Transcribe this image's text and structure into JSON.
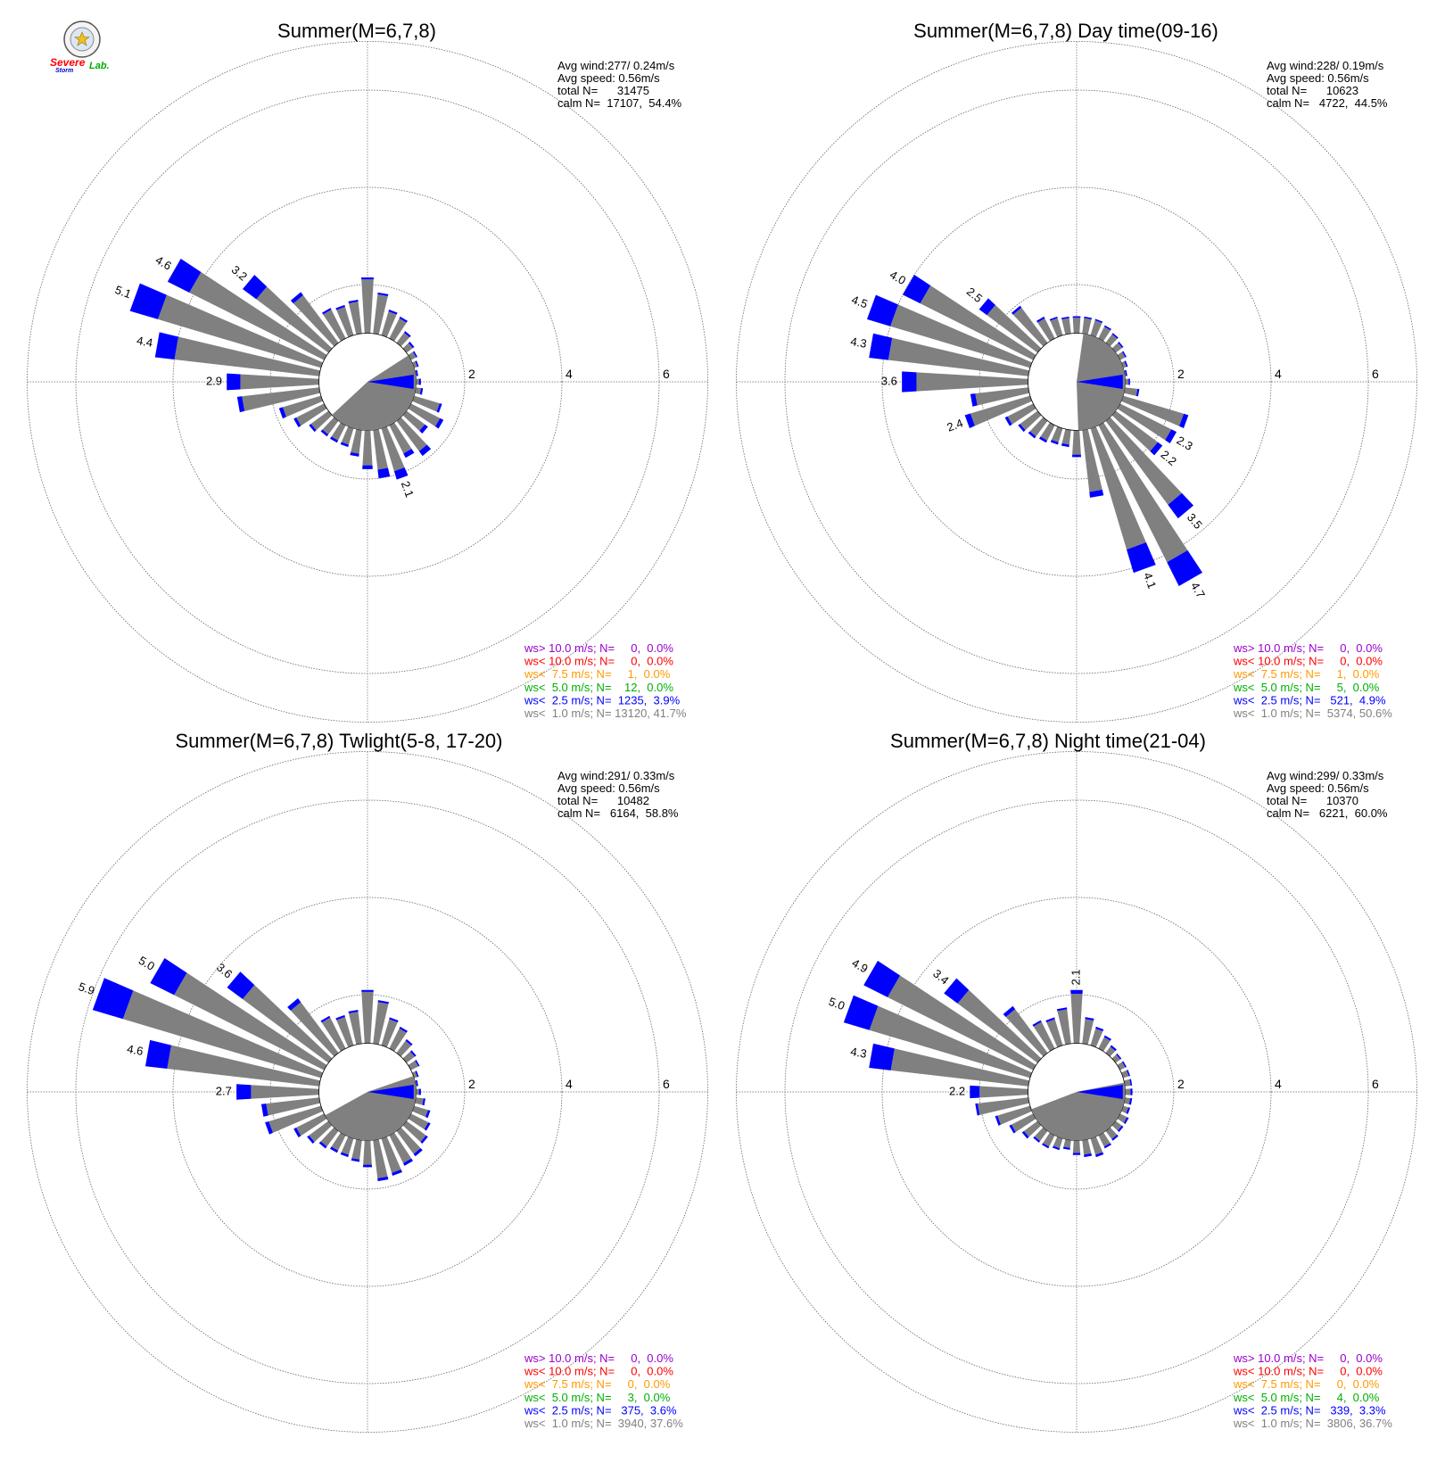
{
  "logo": {
    "text_severe": "Severe",
    "text_storm": "Storm",
    "text_lab": "Lab."
  },
  "colors": {
    "bar": "#808080",
    "blue": "#0000ff",
    "green": "#00b000",
    "orange": "#ff9900",
    "red": "#ff0000",
    "purple": "#9900cc",
    "gray_text": "#808080",
    "grid": "#666666"
  },
  "chart_data": [
    {
      "type": "polar-bar",
      "title": "Summer(M=6,7,8)",
      "stats": {
        "avg_wind": "Avg wind:277/ 0.24m/s",
        "avg_speed": "Avg speed: 0.56m/s",
        "total": "total N=      31475",
        "calm": "calm N=  17107,  54.4%"
      },
      "radial_axis": {
        "ticks": [
          2,
          4,
          6
        ],
        "max": 7,
        "calm_radius": 1.0
      },
      "legend": [
        {
          "text": "ws> 10.0 m/s; N=     0,  0.0%",
          "color": "#9900cc"
        },
        {
          "text": "ws< 10.0 m/s; N=     0,  0.0%",
          "color": "#ff0000"
        },
        {
          "text": "ws<  7.5 m/s; N=     1,  0.0%",
          "color": "#ff9900"
        },
        {
          "text": "ws<  5.0 m/s; N=    12,  0.0%",
          "color": "#00b000"
        },
        {
          "text": "ws<  2.5 m/s; N=  1235,  3.9%",
          "color": "#0000ff"
        },
        {
          "text": "ws<  1.0 m/s; N= 13120, 41.7%",
          "color": "#808080"
        }
      ],
      "avg_dir": 277,
      "avg_len": 0.24,
      "bars": [
        {
          "dir": 0,
          "val": 2.15,
          "blue": 0.04
        },
        {
          "dir": 10,
          "val": 1.85,
          "blue": 0.04
        },
        {
          "dir": 20,
          "val": 1.55,
          "blue": 0.04
        },
        {
          "dir": 30,
          "val": 1.5,
          "blue": 0.04
        },
        {
          "dir": 40,
          "val": 1.3,
          "blue": 0.04
        },
        {
          "dir": 50,
          "val": 1.2,
          "blue": 0.04
        },
        {
          "dir": 60,
          "val": 1.15,
          "blue": 0.03
        },
        {
          "dir": 70,
          "val": 1.1,
          "blue": 0.03
        },
        {
          "dir": 80,
          "val": 1.05,
          "blue": 0.03
        },
        {
          "dir": 90,
          "val": 1.1,
          "blue": 0.04
        },
        {
          "dir": 100,
          "val": 1.15,
          "blue": 0.04
        },
        {
          "dir": 110,
          "val": 1.6,
          "blue": 0.05
        },
        {
          "dir": 120,
          "val": 1.75,
          "blue": 0.08
        },
        {
          "dir": 130,
          "val": 1.55,
          "blue": 0.08
        },
        {
          "dir": 140,
          "val": 1.9,
          "blue": 0.12
        },
        {
          "dir": 150,
          "val": 1.75,
          "blue": 0.1
        },
        {
          "dir": 160,
          "val": 2.1,
          "blue": 0.18,
          "label": "2.1"
        },
        {
          "dir": 170,
          "val": 2.0,
          "blue": 0.18
        },
        {
          "dir": 180,
          "val": 1.8,
          "blue": 0.08
        },
        {
          "dir": 190,
          "val": 1.55,
          "blue": 0.06
        },
        {
          "dir": 200,
          "val": 1.4,
          "blue": 0.05
        },
        {
          "dir": 210,
          "val": 1.4,
          "blue": 0.05
        },
        {
          "dir": 220,
          "val": 1.4,
          "blue": 0.05
        },
        {
          "dir": 230,
          "val": 1.5,
          "blue": 0.05
        },
        {
          "dir": 240,
          "val": 1.7,
          "blue": 0.06
        },
        {
          "dir": 250,
          "val": 1.9,
          "blue": 0.08
        },
        {
          "dir": 260,
          "val": 2.7,
          "blue": 0.1
        },
        {
          "dir": 270,
          "val": 2.9,
          "blue": 0.28,
          "label": "2.9"
        },
        {
          "dir": 280,
          "val": 4.4,
          "blue": 0.4,
          "label": "4.4"
        },
        {
          "dir": 290,
          "val": 5.1,
          "blue": 0.6,
          "label": "5.1"
        },
        {
          "dir": 300,
          "val": 4.6,
          "blue": 0.5,
          "label": "4.6"
        },
        {
          "dir": 310,
          "val": 3.2,
          "blue": 0.35,
          "label": "3.2"
        },
        {
          "dir": 320,
          "val": 2.3,
          "blue": 0.08
        },
        {
          "dir": 330,
          "val": 1.7,
          "blue": 0.04
        },
        {
          "dir": 340,
          "val": 1.65,
          "blue": 0.04
        },
        {
          "dir": 350,
          "val": 1.7,
          "blue": 0.04
        }
      ]
    },
    {
      "type": "polar-bar",
      "title": "Summer(M=6,7,8) Day time(09-16)",
      "stats": {
        "avg_wind": "Avg wind:228/ 0.19m/s",
        "avg_speed": "Avg speed: 0.56m/s",
        "total": "total N=      10623",
        "calm": "calm N=   4722,  44.5%"
      },
      "radial_axis": {
        "ticks": [
          2,
          4,
          6
        ],
        "max": 7,
        "calm_radius": 1.0
      },
      "legend": [
        {
          "text": "ws> 10.0 m/s; N=     0,  0.0%",
          "color": "#9900cc"
        },
        {
          "text": "ws< 10.0 m/s; N=     0,  0.0%",
          "color": "#ff0000"
        },
        {
          "text": "ws<  7.5 m/s; N=     1,  0.0%",
          "color": "#ff9900"
        },
        {
          "text": "ws<  5.0 m/s; N=     5,  0.0%",
          "color": "#00b000"
        },
        {
          "text": "ws<  2.5 m/s; N=   521,  4.9%",
          "color": "#0000ff"
        },
        {
          "text": "ws<  1.0 m/s; N=  5374, 50.6%",
          "color": "#808080"
        }
      ],
      "avg_dir": 228,
      "avg_len": 0.19,
      "bars": [
        {
          "dir": 0,
          "val": 1.35,
          "blue": 0.03
        },
        {
          "dir": 10,
          "val": 1.35,
          "blue": 0.03
        },
        {
          "dir": 20,
          "val": 1.35,
          "blue": 0.03
        },
        {
          "dir": 30,
          "val": 1.3,
          "blue": 0.03
        },
        {
          "dir": 40,
          "val": 1.25,
          "blue": 0.03
        },
        {
          "dir": 50,
          "val": 1.2,
          "blue": 0.03
        },
        {
          "dir": 60,
          "val": 1.15,
          "blue": 0.03
        },
        {
          "dir": 70,
          "val": 1.1,
          "blue": 0.03
        },
        {
          "dir": 80,
          "val": 1.05,
          "blue": 0.03
        },
        {
          "dir": 90,
          "val": 1.1,
          "blue": 0.03
        },
        {
          "dir": 100,
          "val": 1.3,
          "blue": 0.04
        },
        {
          "dir": 110,
          "val": 2.4,
          "blue": 0.1
        },
        {
          "dir": 120,
          "val": 2.3,
          "blue": 0.12,
          "label": "2.3"
        },
        {
          "dir": 130,
          "val": 2.2,
          "blue": 0.12,
          "label": "2.2"
        },
        {
          "dir": 140,
          "val": 3.5,
          "blue": 0.35,
          "label": "3.5"
        },
        {
          "dir": 150,
          "val": 4.7,
          "blue": 0.55,
          "label": "4.7"
        },
        {
          "dir": 160,
          "val": 4.1,
          "blue": 0.5,
          "label": "4.1"
        },
        {
          "dir": 170,
          "val": 2.4,
          "blue": 0.12
        },
        {
          "dir": 180,
          "val": 1.55,
          "blue": 0.05
        },
        {
          "dir": 190,
          "val": 1.35,
          "blue": 0.05
        },
        {
          "dir": 200,
          "val": 1.35,
          "blue": 0.05
        },
        {
          "dir": 210,
          "val": 1.4,
          "blue": 0.05
        },
        {
          "dir": 220,
          "val": 1.45,
          "blue": 0.05
        },
        {
          "dir": 230,
          "val": 1.5,
          "blue": 0.05
        },
        {
          "dir": 240,
          "val": 1.65,
          "blue": 0.06
        },
        {
          "dir": 250,
          "val": 2.4,
          "blue": 0.12,
          "label": "2.4"
        },
        {
          "dir": 260,
          "val": 2.2,
          "blue": 0.1
        },
        {
          "dir": 270,
          "val": 3.6,
          "blue": 0.3,
          "label": "3.6"
        },
        {
          "dir": 280,
          "val": 4.3,
          "blue": 0.4,
          "label": "4.3"
        },
        {
          "dir": 290,
          "val": 4.5,
          "blue": 0.5,
          "label": "4.5"
        },
        {
          "dir": 300,
          "val": 4.0,
          "blue": 0.4,
          "label": "4.0"
        },
        {
          "dir": 310,
          "val": 2.5,
          "blue": 0.2,
          "label": "2.5"
        },
        {
          "dir": 320,
          "val": 1.95,
          "blue": 0.05
        },
        {
          "dir": 330,
          "val": 1.5,
          "blue": 0.04
        },
        {
          "dir": 340,
          "val": 1.4,
          "blue": 0.03
        },
        {
          "dir": 350,
          "val": 1.35,
          "blue": 0.03
        }
      ]
    },
    {
      "type": "polar-bar",
      "title": "Summer(M=6,7,8) Twlight(5-8, 17-20)",
      "stats": {
        "avg_wind": "Avg wind:291/ 0.33m/s",
        "avg_speed": "Avg speed: 0.56m/s",
        "total": "total N=      10482",
        "calm": "calm N=   6164,  58.8%"
      },
      "radial_axis": {
        "ticks": [
          2,
          4,
          6
        ],
        "max": 7,
        "calm_radius": 1.0
      },
      "legend": [
        {
          "text": "ws> 10.0 m/s; N=     0,  0.0%",
          "color": "#9900cc"
        },
        {
          "text": "ws< 10.0 m/s; N=     0,  0.0%",
          "color": "#ff0000"
        },
        {
          "text": "ws<  7.5 m/s; N=     0,  0.0%",
          "color": "#ff9900"
        },
        {
          "text": "ws<  5.0 m/s; N=     3,  0.0%",
          "color": "#00b000"
        },
        {
          "text": "ws<  2.5 m/s; N=   375,  3.6%",
          "color": "#0000ff"
        },
        {
          "text": "ws<  1.0 m/s; N=  3940, 37.6%",
          "color": "#808080"
        }
      ],
      "avg_dir": 291,
      "avg_len": 0.33,
      "bars": [
        {
          "dir": 0,
          "val": 2.1,
          "blue": 0.04
        },
        {
          "dir": 10,
          "val": 1.9,
          "blue": 0.04
        },
        {
          "dir": 20,
          "val": 1.6,
          "blue": 0.04
        },
        {
          "dir": 30,
          "val": 1.5,
          "blue": 0.04
        },
        {
          "dir": 40,
          "val": 1.35,
          "blue": 0.04
        },
        {
          "dir": 50,
          "val": 1.25,
          "blue": 0.04
        },
        {
          "dir": 60,
          "val": 1.2,
          "blue": 0.03
        },
        {
          "dir": 70,
          "val": 1.1,
          "blue": 0.03
        },
        {
          "dir": 80,
          "val": 1.05,
          "blue": 0.03
        },
        {
          "dir": 90,
          "val": 1.1,
          "blue": 0.04
        },
        {
          "dir": 100,
          "val": 1.2,
          "blue": 0.04
        },
        {
          "dir": 110,
          "val": 1.35,
          "blue": 0.05
        },
        {
          "dir": 120,
          "val": 1.45,
          "blue": 0.05
        },
        {
          "dir": 130,
          "val": 1.55,
          "blue": 0.05
        },
        {
          "dir": 140,
          "val": 1.65,
          "blue": 0.06
        },
        {
          "dir": 150,
          "val": 1.7,
          "blue": 0.06
        },
        {
          "dir": 160,
          "val": 1.8,
          "blue": 0.06
        },
        {
          "dir": 170,
          "val": 1.85,
          "blue": 0.06
        },
        {
          "dir": 180,
          "val": 1.55,
          "blue": 0.05
        },
        {
          "dir": 190,
          "val": 1.45,
          "blue": 0.05
        },
        {
          "dir": 200,
          "val": 1.4,
          "blue": 0.05
        },
        {
          "dir": 210,
          "val": 1.4,
          "blue": 0.05
        },
        {
          "dir": 220,
          "val": 1.45,
          "blue": 0.05
        },
        {
          "dir": 230,
          "val": 1.55,
          "blue": 0.05
        },
        {
          "dir": 240,
          "val": 1.7,
          "blue": 0.06
        },
        {
          "dir": 250,
          "val": 2.2,
          "blue": 0.08
        },
        {
          "dir": 260,
          "val": 2.2,
          "blue": 0.1
        },
        {
          "dir": 270,
          "val": 2.7,
          "blue": 0.3,
          "label": "2.7"
        },
        {
          "dir": 280,
          "val": 4.6,
          "blue": 0.45,
          "label": "4.6"
        },
        {
          "dir": 290,
          "val": 5.9,
          "blue": 0.65,
          "label": "5.9"
        },
        {
          "dir": 300,
          "val": 5.0,
          "blue": 0.55,
          "label": "5.0"
        },
        {
          "dir": 310,
          "val": 3.6,
          "blue": 0.4,
          "label": "3.6"
        },
        {
          "dir": 320,
          "val": 2.4,
          "blue": 0.1
        },
        {
          "dir": 330,
          "val": 1.75,
          "blue": 0.04
        },
        {
          "dir": 340,
          "val": 1.65,
          "blue": 0.04
        },
        {
          "dir": 350,
          "val": 1.7,
          "blue": 0.04
        }
      ]
    },
    {
      "type": "polar-bar",
      "title": "Summer(M=6,7,8) Night time(21-04)",
      "stats": {
        "avg_wind": "Avg wind:299/ 0.33m/s",
        "avg_speed": "Avg speed: 0.56m/s",
        "total": "total N=      10370",
        "calm": "calm N=   6221,  60.0%"
      },
      "radial_axis": {
        "ticks": [
          2,
          4,
          6
        ],
        "max": 7,
        "calm_radius": 1.0
      },
      "legend": [
        {
          "text": "ws> 10.0 m/s; N=     0,  0.0%",
          "color": "#9900cc"
        },
        {
          "text": "ws< 10.0 m/s; N=     0,  0.0%",
          "color": "#ff0000"
        },
        {
          "text": "ws<  7.5 m/s; N=     0,  0.0%",
          "color": "#ff9900"
        },
        {
          "text": "ws<  5.0 m/s; N=     4,  0.0%",
          "color": "#00b000"
        },
        {
          "text": "ws<  2.5 m/s; N=   339,  3.3%",
          "color": "#0000ff"
        },
        {
          "text": "ws<  1.0 m/s; N=  3806, 36.7%",
          "color": "#808080"
        }
      ],
      "avg_dir": 299,
      "avg_len": 0.33,
      "bars": [
        {
          "dir": 0,
          "val": 2.1,
          "blue": 0.08,
          "label": "2.1"
        },
        {
          "dir": 10,
          "val": 1.55,
          "blue": 0.04
        },
        {
          "dir": 20,
          "val": 1.4,
          "blue": 0.04
        },
        {
          "dir": 30,
          "val": 1.3,
          "blue": 0.04
        },
        {
          "dir": 40,
          "val": 1.2,
          "blue": 0.04
        },
        {
          "dir": 50,
          "val": 1.15,
          "blue": 0.03
        },
        {
          "dir": 60,
          "val": 1.15,
          "blue": 0.03
        },
        {
          "dir": 70,
          "val": 1.15,
          "blue": 0.03
        },
        {
          "dir": 80,
          "val": 1.15,
          "blue": 0.03
        },
        {
          "dir": 90,
          "val": 1.15,
          "blue": 0.04
        },
        {
          "dir": 100,
          "val": 1.15,
          "blue": 0.04
        },
        {
          "dir": 110,
          "val": 1.15,
          "blue": 0.04
        },
        {
          "dir": 120,
          "val": 1.2,
          "blue": 0.04
        },
        {
          "dir": 130,
          "val": 1.2,
          "blue": 0.04
        },
        {
          "dir": 140,
          "val": 1.25,
          "blue": 0.04
        },
        {
          "dir": 150,
          "val": 1.3,
          "blue": 0.04
        },
        {
          "dir": 160,
          "val": 1.4,
          "blue": 0.05
        },
        {
          "dir": 170,
          "val": 1.35,
          "blue": 0.05
        },
        {
          "dir": 180,
          "val": 1.3,
          "blue": 0.04
        },
        {
          "dir": 190,
          "val": 1.2,
          "blue": 0.04
        },
        {
          "dir": 200,
          "val": 1.25,
          "blue": 0.04
        },
        {
          "dir": 210,
          "val": 1.3,
          "blue": 0.04
        },
        {
          "dir": 220,
          "val": 1.3,
          "blue": 0.04
        },
        {
          "dir": 230,
          "val": 1.4,
          "blue": 0.05
        },
        {
          "dir": 240,
          "val": 1.55,
          "blue": 0.05
        },
        {
          "dir": 250,
          "val": 1.75,
          "blue": 0.05
        },
        {
          "dir": 260,
          "val": 2.1,
          "blue": 0.05
        },
        {
          "dir": 270,
          "val": 2.2,
          "blue": 0.2,
          "label": "2.2"
        },
        {
          "dir": 280,
          "val": 4.3,
          "blue": 0.45,
          "label": "4.3"
        },
        {
          "dir": 290,
          "val": 5.0,
          "blue": 0.55,
          "label": "5.0"
        },
        {
          "dir": 300,
          "val": 4.9,
          "blue": 0.55,
          "label": "4.9"
        },
        {
          "dir": 310,
          "val": 3.4,
          "blue": 0.35,
          "label": "3.4"
        },
        {
          "dir": 320,
          "val": 2.2,
          "blue": 0.08
        },
        {
          "dir": 330,
          "val": 1.65,
          "blue": 0.04
        },
        {
          "dir": 340,
          "val": 1.6,
          "blue": 0.04
        },
        {
          "dir": 350,
          "val": 1.75,
          "blue": 0.04
        }
      ]
    }
  ]
}
